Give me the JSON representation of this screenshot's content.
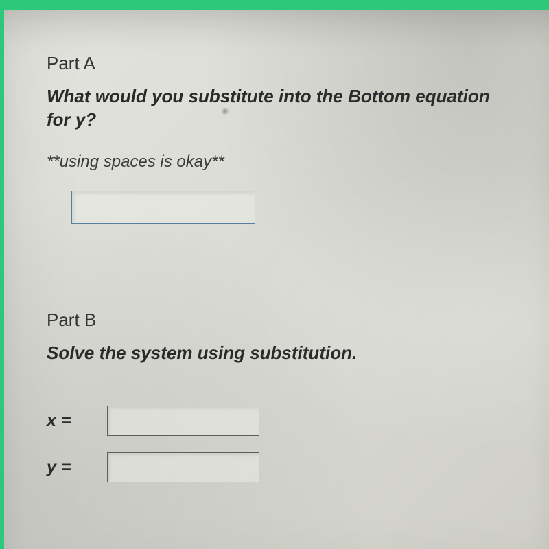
{
  "partA": {
    "label": "Part A",
    "prompt": "What would you substitute into the Bottom equation for y?",
    "note": "**using spaces is okay**"
  },
  "partB": {
    "label": "Part B",
    "prompt": "Solve the system using substitution."
  },
  "answers": {
    "x_label": "x =",
    "y_label": "y ="
  },
  "style": {
    "page_bg": "#2dc97a",
    "sheet_gradient_from": "#e4e4de",
    "sheet_gradient_to": "#cfcfc8",
    "text_color": "#303030",
    "input_border_primary": "#5b7fa3",
    "input_border_secondary": "#5e5e56",
    "font_size_label": 26,
    "font_size_prompt": 26,
    "font_size_note": 24,
    "font_size_answer_label": 25
  }
}
